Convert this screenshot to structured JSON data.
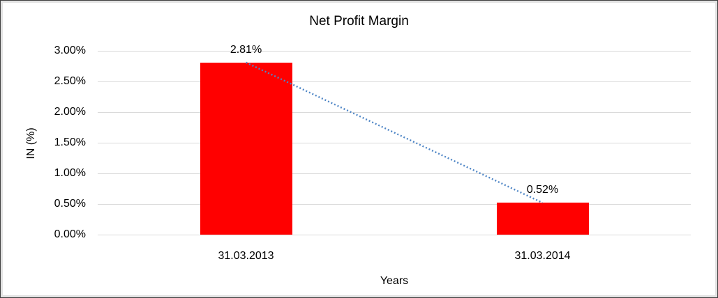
{
  "chart_data": {
    "type": "bar",
    "title": "Net Profit Margin",
    "xlabel": "Years",
    "ylabel": "IN (%)",
    "categories": [
      "31.03.2013",
      "31.03.2014"
    ],
    "values": [
      2.81,
      0.52
    ],
    "data_labels": [
      "2.81%",
      "0.52%"
    ],
    "ylim": [
      0,
      3
    ],
    "ytick_values": [
      0,
      0.5,
      1,
      1.5,
      2,
      2.5,
      3
    ],
    "ytick_labels": [
      "0.00%",
      "0.50%",
      "1.00%",
      "1.50%",
      "2.00%",
      "2.50%",
      "3.00%"
    ],
    "grid": true,
    "legend": "none",
    "trendline": {
      "style": "dotted",
      "from_value": 2.81,
      "to_value": 0.52
    },
    "colors": {
      "bar": "#ff0000",
      "trendline": "#4f86c6",
      "gridline": "#d9d9d9",
      "text": "#000000",
      "frame_border": "#3f3f3f",
      "frame_inner": "#e3e3e3",
      "background": "#ffffff"
    }
  }
}
